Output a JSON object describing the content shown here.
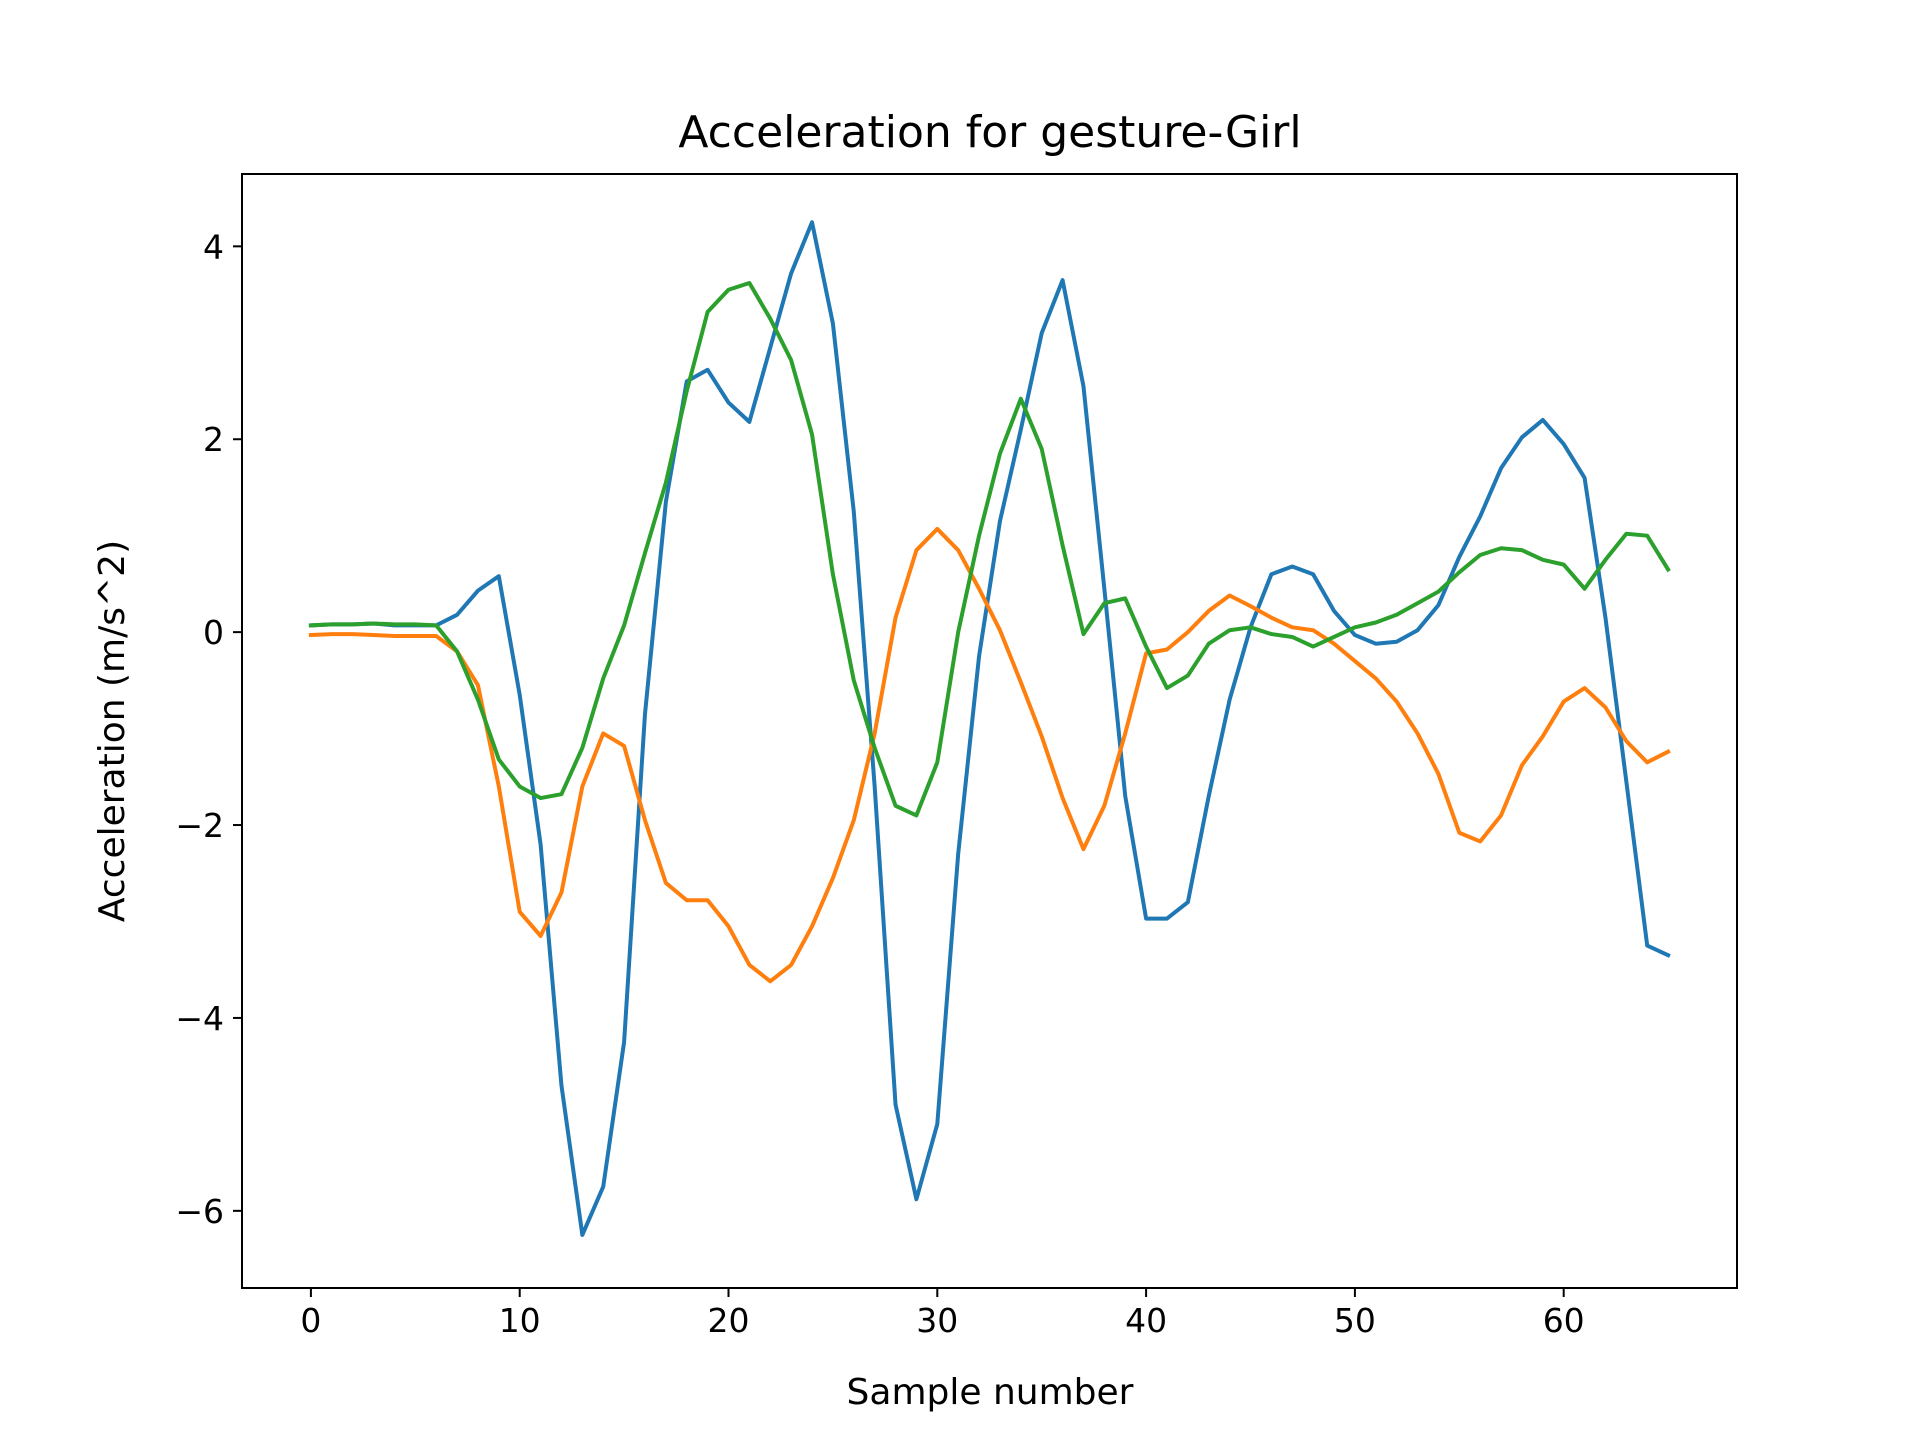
{
  "chart_data": {
    "type": "line",
    "title": "Acceleration for gesture-Girl",
    "xlabel": "Sample number",
    "ylabel": "Acceleration (m/s^2)",
    "xlim": [
      -3.3,
      68.3
    ],
    "ylim": [
      -6.8,
      4.75
    ],
    "x_ticks": [
      0,
      10,
      20,
      30,
      40,
      50,
      60
    ],
    "y_ticks": [
      -6,
      -4,
      -2,
      0,
      2,
      4
    ],
    "x_tick_labels": [
      "0",
      "10",
      "20",
      "30",
      "40",
      "50",
      "60"
    ],
    "y_tick_labels": [
      "−6",
      "−4",
      "−2",
      "0",
      "2",
      "4"
    ],
    "grid": false,
    "legend": "none",
    "x": [
      0,
      1,
      2,
      3,
      4,
      5,
      6,
      7,
      8,
      9,
      10,
      11,
      12,
      13,
      14,
      15,
      16,
      17,
      18,
      19,
      20,
      21,
      22,
      23,
      24,
      25,
      26,
      27,
      28,
      29,
      30,
      31,
      32,
      33,
      34,
      35,
      36,
      37,
      38,
      39,
      40,
      41,
      42,
      43,
      44,
      45,
      46,
      47,
      48,
      49,
      50,
      51,
      52,
      53,
      54,
      55,
      56,
      57,
      58,
      59,
      60,
      61,
      62,
      63,
      64,
      65
    ],
    "series": [
      {
        "color": "#1f77b4",
        "values": [
          0.07,
          0.08,
          0.08,
          0.09,
          0.07,
          0.07,
          0.07,
          0.18,
          0.43,
          0.58,
          -0.65,
          -2.2,
          -4.7,
          -6.25,
          -5.75,
          -4.25,
          -0.85,
          1.35,
          2.6,
          2.72,
          2.38,
          2.18,
          2.95,
          3.72,
          4.25,
          3.2,
          1.25,
          -1.6,
          -4.9,
          -5.88,
          -5.1,
          -2.3,
          -0.25,
          1.15,
          2.1,
          3.1,
          3.65,
          2.55,
          0.45,
          -1.7,
          -2.97,
          -2.97,
          -2.8,
          -1.7,
          -0.7,
          0.05,
          0.6,
          0.68,
          0.6,
          0.22,
          -0.03,
          -0.12,
          -0.1,
          0.02,
          0.28,
          0.78,
          1.2,
          1.7,
          2.02,
          2.2,
          1.95,
          1.6,
          0.15,
          -1.55,
          -3.25,
          -3.35
        ]
      },
      {
        "color": "#ff7f0e",
        "values": [
          -0.03,
          -0.02,
          -0.02,
          -0.03,
          -0.04,
          -0.04,
          -0.04,
          -0.2,
          -0.55,
          -1.6,
          -2.9,
          -3.15,
          -2.7,
          -1.6,
          -1.05,
          -1.18,
          -1.95,
          -2.6,
          -2.78,
          -2.78,
          -3.05,
          -3.45,
          -3.62,
          -3.45,
          -3.05,
          -2.55,
          -1.95,
          -1.05,
          0.15,
          0.85,
          1.07,
          0.85,
          0.45,
          0.02,
          -0.52,
          -1.08,
          -1.72,
          -2.25,
          -1.8,
          -1.05,
          -0.22,
          -0.18,
          0.0,
          0.22,
          0.38,
          0.27,
          0.15,
          0.05,
          0.02,
          -0.12,
          -0.3,
          -0.48,
          -0.72,
          -1.05,
          -1.47,
          -2.08,
          -2.17,
          -1.9,
          -1.38,
          -1.08,
          -0.72,
          -0.58,
          -0.78,
          -1.13,
          -1.35,
          -1.24
        ]
      },
      {
        "color": "#2ca02c",
        "values": [
          0.07,
          0.08,
          0.08,
          0.09,
          0.08,
          0.08,
          0.07,
          -0.2,
          -0.7,
          -1.32,
          -1.6,
          -1.72,
          -1.68,
          -1.2,
          -0.48,
          0.07,
          0.82,
          1.55,
          2.5,
          3.32,
          3.55,
          3.62,
          3.25,
          2.82,
          2.05,
          0.6,
          -0.5,
          -1.2,
          -1.8,
          -1.9,
          -1.35,
          0.0,
          1.0,
          1.85,
          2.42,
          1.9,
          0.9,
          -0.02,
          0.3,
          0.35,
          -0.15,
          -0.58,
          -0.45,
          -0.12,
          0.02,
          0.05,
          -0.02,
          -0.05,
          -0.15,
          -0.05,
          0.05,
          0.1,
          0.18,
          0.3,
          0.42,
          0.62,
          0.8,
          0.87,
          0.85,
          0.75,
          0.7,
          0.45,
          0.75,
          1.02,
          1.0,
          0.65
        ]
      }
    ]
  }
}
